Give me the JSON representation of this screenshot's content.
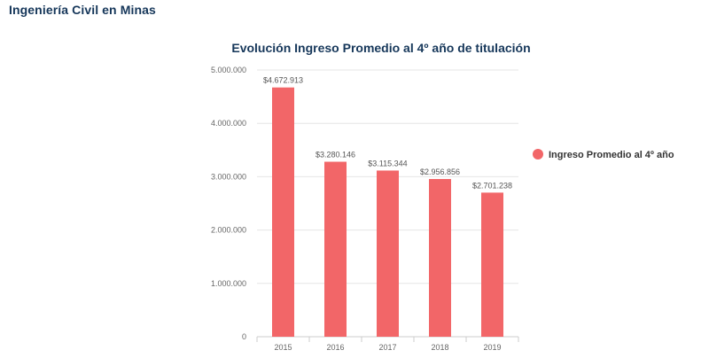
{
  "page": {
    "title": "Ingeniería Civil en Minas"
  },
  "colors": {
    "title": "#16375a",
    "bar": "#f26668",
    "grid": "#e6e6e6",
    "axis": "#cccccc"
  },
  "chart_data": {
    "type": "bar",
    "title": "Evolución Ingreso Promedio al 4º año de titulación",
    "categories": [
      "2015",
      "2016",
      "2017",
      "2018",
      "2019"
    ],
    "series": [
      {
        "name": "Ingreso Promedio al 4º año",
        "values": [
          4672913,
          3280146,
          3115344,
          2956856,
          2701238
        ],
        "data_labels": [
          "$4.672.913",
          "$3.280.146",
          "$3.115.344",
          "$2.956.856",
          "$2.701.238"
        ]
      }
    ],
    "ylim": [
      0,
      5000000
    ],
    "yticks": [
      0,
      1000000,
      2000000,
      3000000,
      4000000,
      5000000
    ],
    "ytick_labels": [
      "0",
      "1.000.000",
      "2.000.000",
      "3.000.000",
      "4.000.000",
      "5.000.000"
    ],
    "xlabel": "",
    "ylabel": "",
    "grid": true,
    "legend_position": "right"
  }
}
